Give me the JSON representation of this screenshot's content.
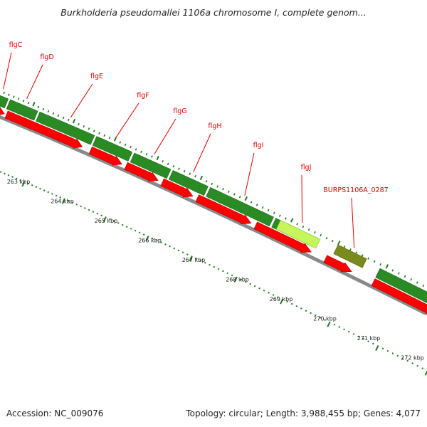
{
  "title": "Burkholderia pseudomallei 1106a chromosome I, complete genom...",
  "footer": {
    "accession": "Accession: NC_009076",
    "stats": "Topology: circular; Length: 3,988,455 bp; Genes: 4,077"
  },
  "colors": {
    "gene_label": "#e00000",
    "cds_forward": "#2a8a24",
    "cds_red": "#ff0000",
    "selected_gene": "#c6f75a",
    "other_gene": "#7a8a1c",
    "backbone": "#8a8a8a",
    "tick": "#1f7a1f"
  },
  "genes": [
    {
      "name": "flgC",
      "highlight": false
    },
    {
      "name": "flgD",
      "highlight": false
    },
    {
      "name": "flgE",
      "highlight": false
    },
    {
      "name": "flgF",
      "highlight": false
    },
    {
      "name": "flgG",
      "highlight": false
    },
    {
      "name": "flgH",
      "highlight": false
    },
    {
      "name": "flgI",
      "highlight": false
    },
    {
      "name": "flgJ",
      "highlight": true
    },
    {
      "name": "BURPS1106A_0287",
      "highlight": false
    }
  ],
  "scale_labels": [
    "263 kbp",
    "264 kbp",
    "265 kbp",
    "266 kbp",
    "267 kbp",
    "268 kbp",
    "269 kbp",
    "270 kbp",
    "271 kbp",
    "272 kbp"
  ]
}
